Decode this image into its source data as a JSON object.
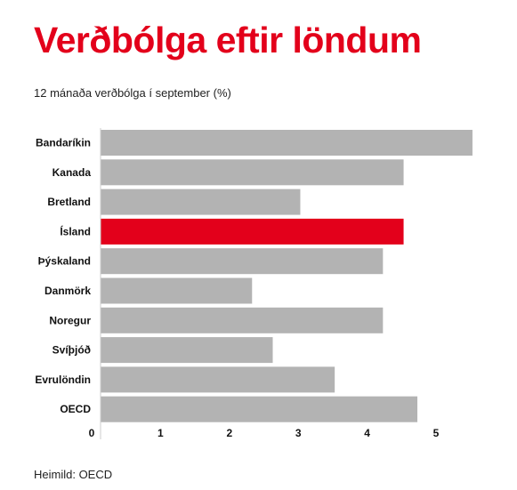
{
  "title": "Verðbólga eftir löndum",
  "subtitle": "12 mánaða verðbólga í september (%)",
  "source": "Heimild: OECD",
  "colors": {
    "highlight": "#e3001b",
    "bar": "#b3b3b3",
    "accent": "#e3001b"
  },
  "chart_data": {
    "type": "bar",
    "orientation": "horizontal",
    "categories": [
      "Bandaríkin",
      "Kanada",
      "Bretland",
      "Ísland",
      "Þýskaland",
      "Danmörk",
      "Noregur",
      "Svíþjóð",
      "Evrulöndin",
      "OECD"
    ],
    "values": [
      5.4,
      4.4,
      2.9,
      4.4,
      4.1,
      2.2,
      4.1,
      2.5,
      3.4,
      4.6
    ],
    "highlight": "Ísland",
    "xticks": [
      0,
      1,
      2,
      3,
      4,
      5
    ],
    "xlim": [
      0,
      5.4
    ],
    "grid": false,
    "legend": "none"
  }
}
